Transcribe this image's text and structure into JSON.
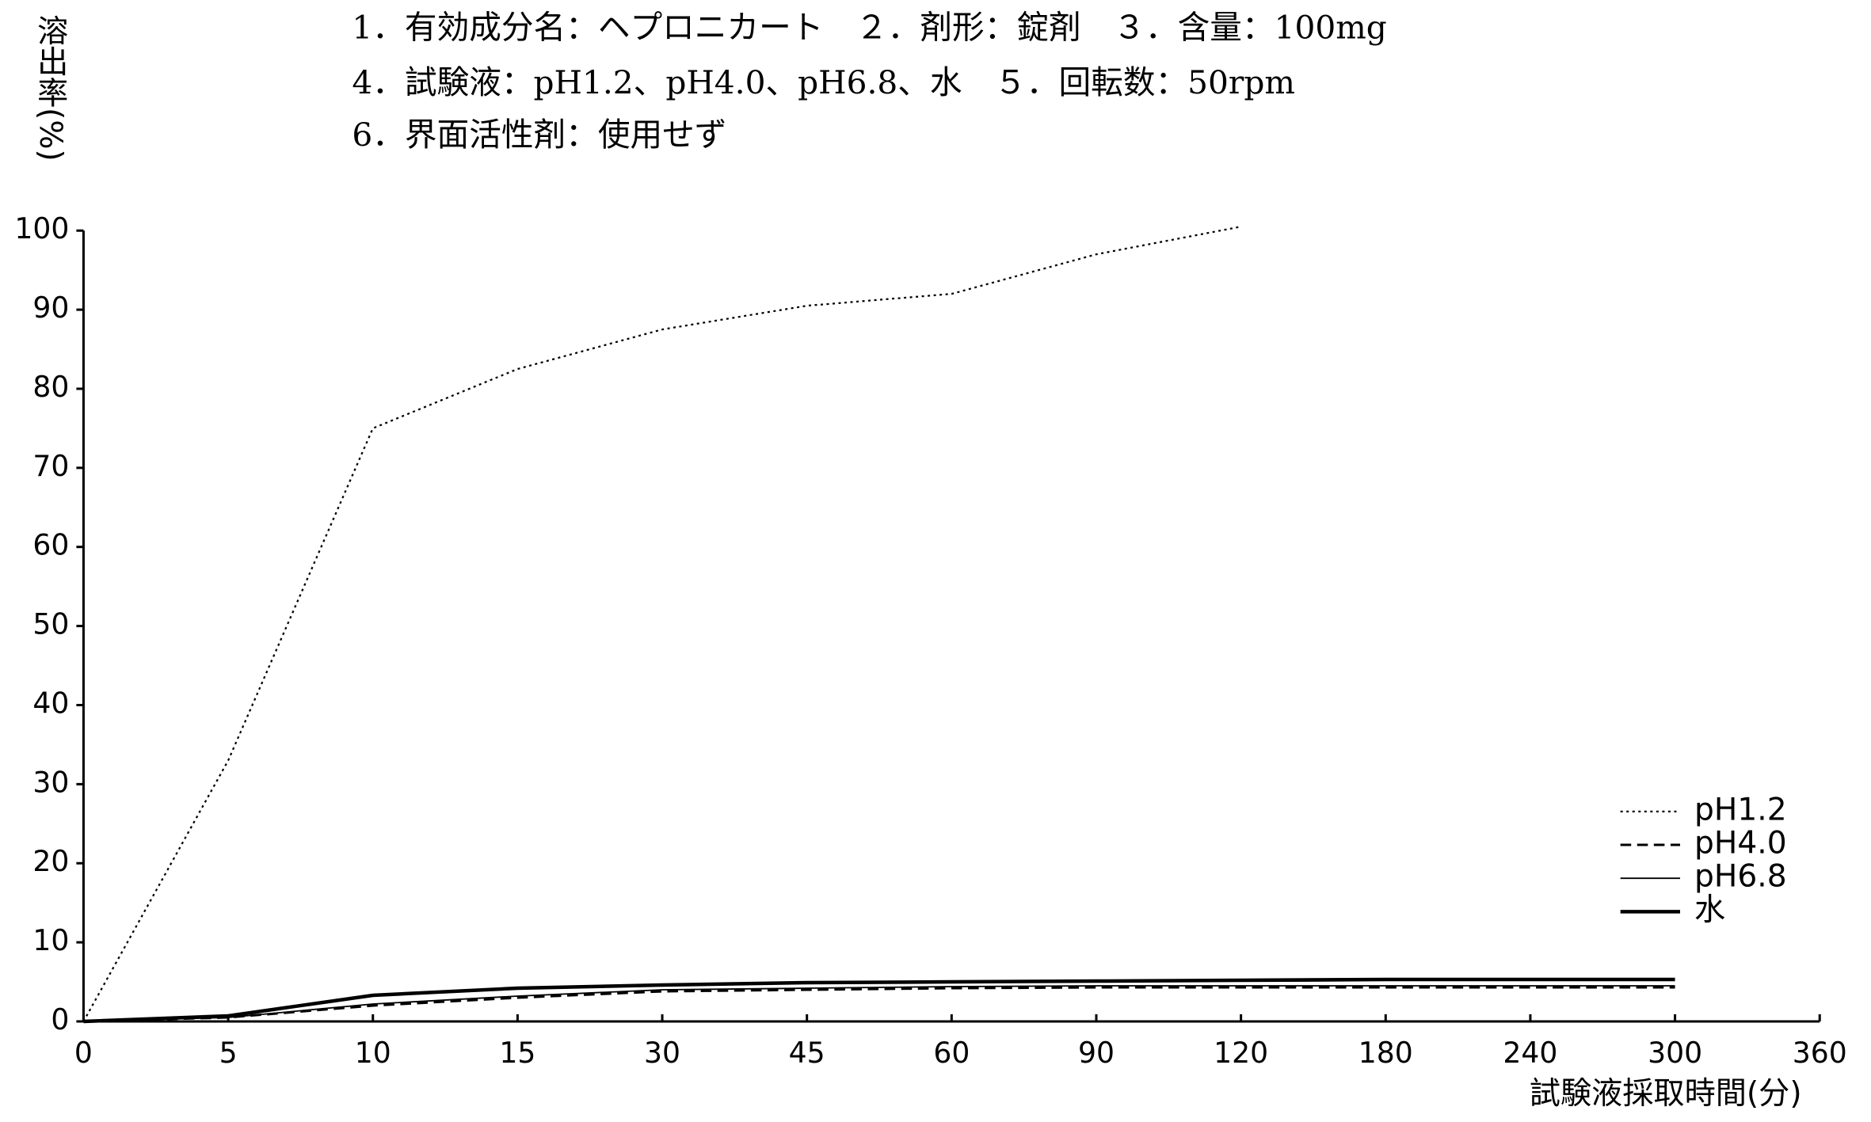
{
  "chart_data": {
    "type": "line",
    "header_lines": [
      "1．有効成分名：ヘプロニカート　２．剤形：錠剤　３．含量：100mg",
      "4．試験液：pH1.2、pH4.0、pH6.8、水　５．回転数：50rpm",
      "6．界面活性剤：使用せず"
    ],
    "y_label": "溶出率(%)",
    "x_label": "試験液採取時間(分)",
    "categories": [
      "0",
      "5",
      "10",
      "15",
      "30",
      "45",
      "60",
      "90",
      "120",
      "180",
      "240",
      "300",
      "360"
    ],
    "ylim": [
      0,
      100
    ],
    "yticks": [
      0,
      10,
      20,
      30,
      40,
      50,
      60,
      70,
      80,
      90,
      100
    ],
    "legend": "lower right",
    "series": [
      {
        "name": "pH1.2",
        "color": "#000000",
        "dash": "dotted",
        "values": [
          0,
          33,
          75,
          82.5,
          87.5,
          90.5,
          92,
          97,
          100.5,
          null,
          null,
          null,
          null
        ]
      },
      {
        "name": "pH4.0",
        "color": "#000000",
        "dash": "dashed",
        "values": [
          0,
          0.5,
          2,
          3,
          3.8,
          4,
          4.2,
          4.3,
          4.3,
          4.3,
          4.3,
          4.3,
          null
        ]
      },
      {
        "name": "pH6.8",
        "color": "#000000",
        "dash": "thin",
        "values": [
          0,
          0.5,
          2.2,
          3.2,
          4,
          4.2,
          4.4,
          4.5,
          4.5,
          4.5,
          4.5,
          4.5,
          null
        ]
      },
      {
        "name": "水",
        "color": "#000000",
        "dash": "thick",
        "values": [
          0,
          0.7,
          3.3,
          4.2,
          4.6,
          4.9,
          5,
          5.1,
          5.2,
          5.3,
          5.3,
          5.3,
          null
        ]
      }
    ]
  }
}
